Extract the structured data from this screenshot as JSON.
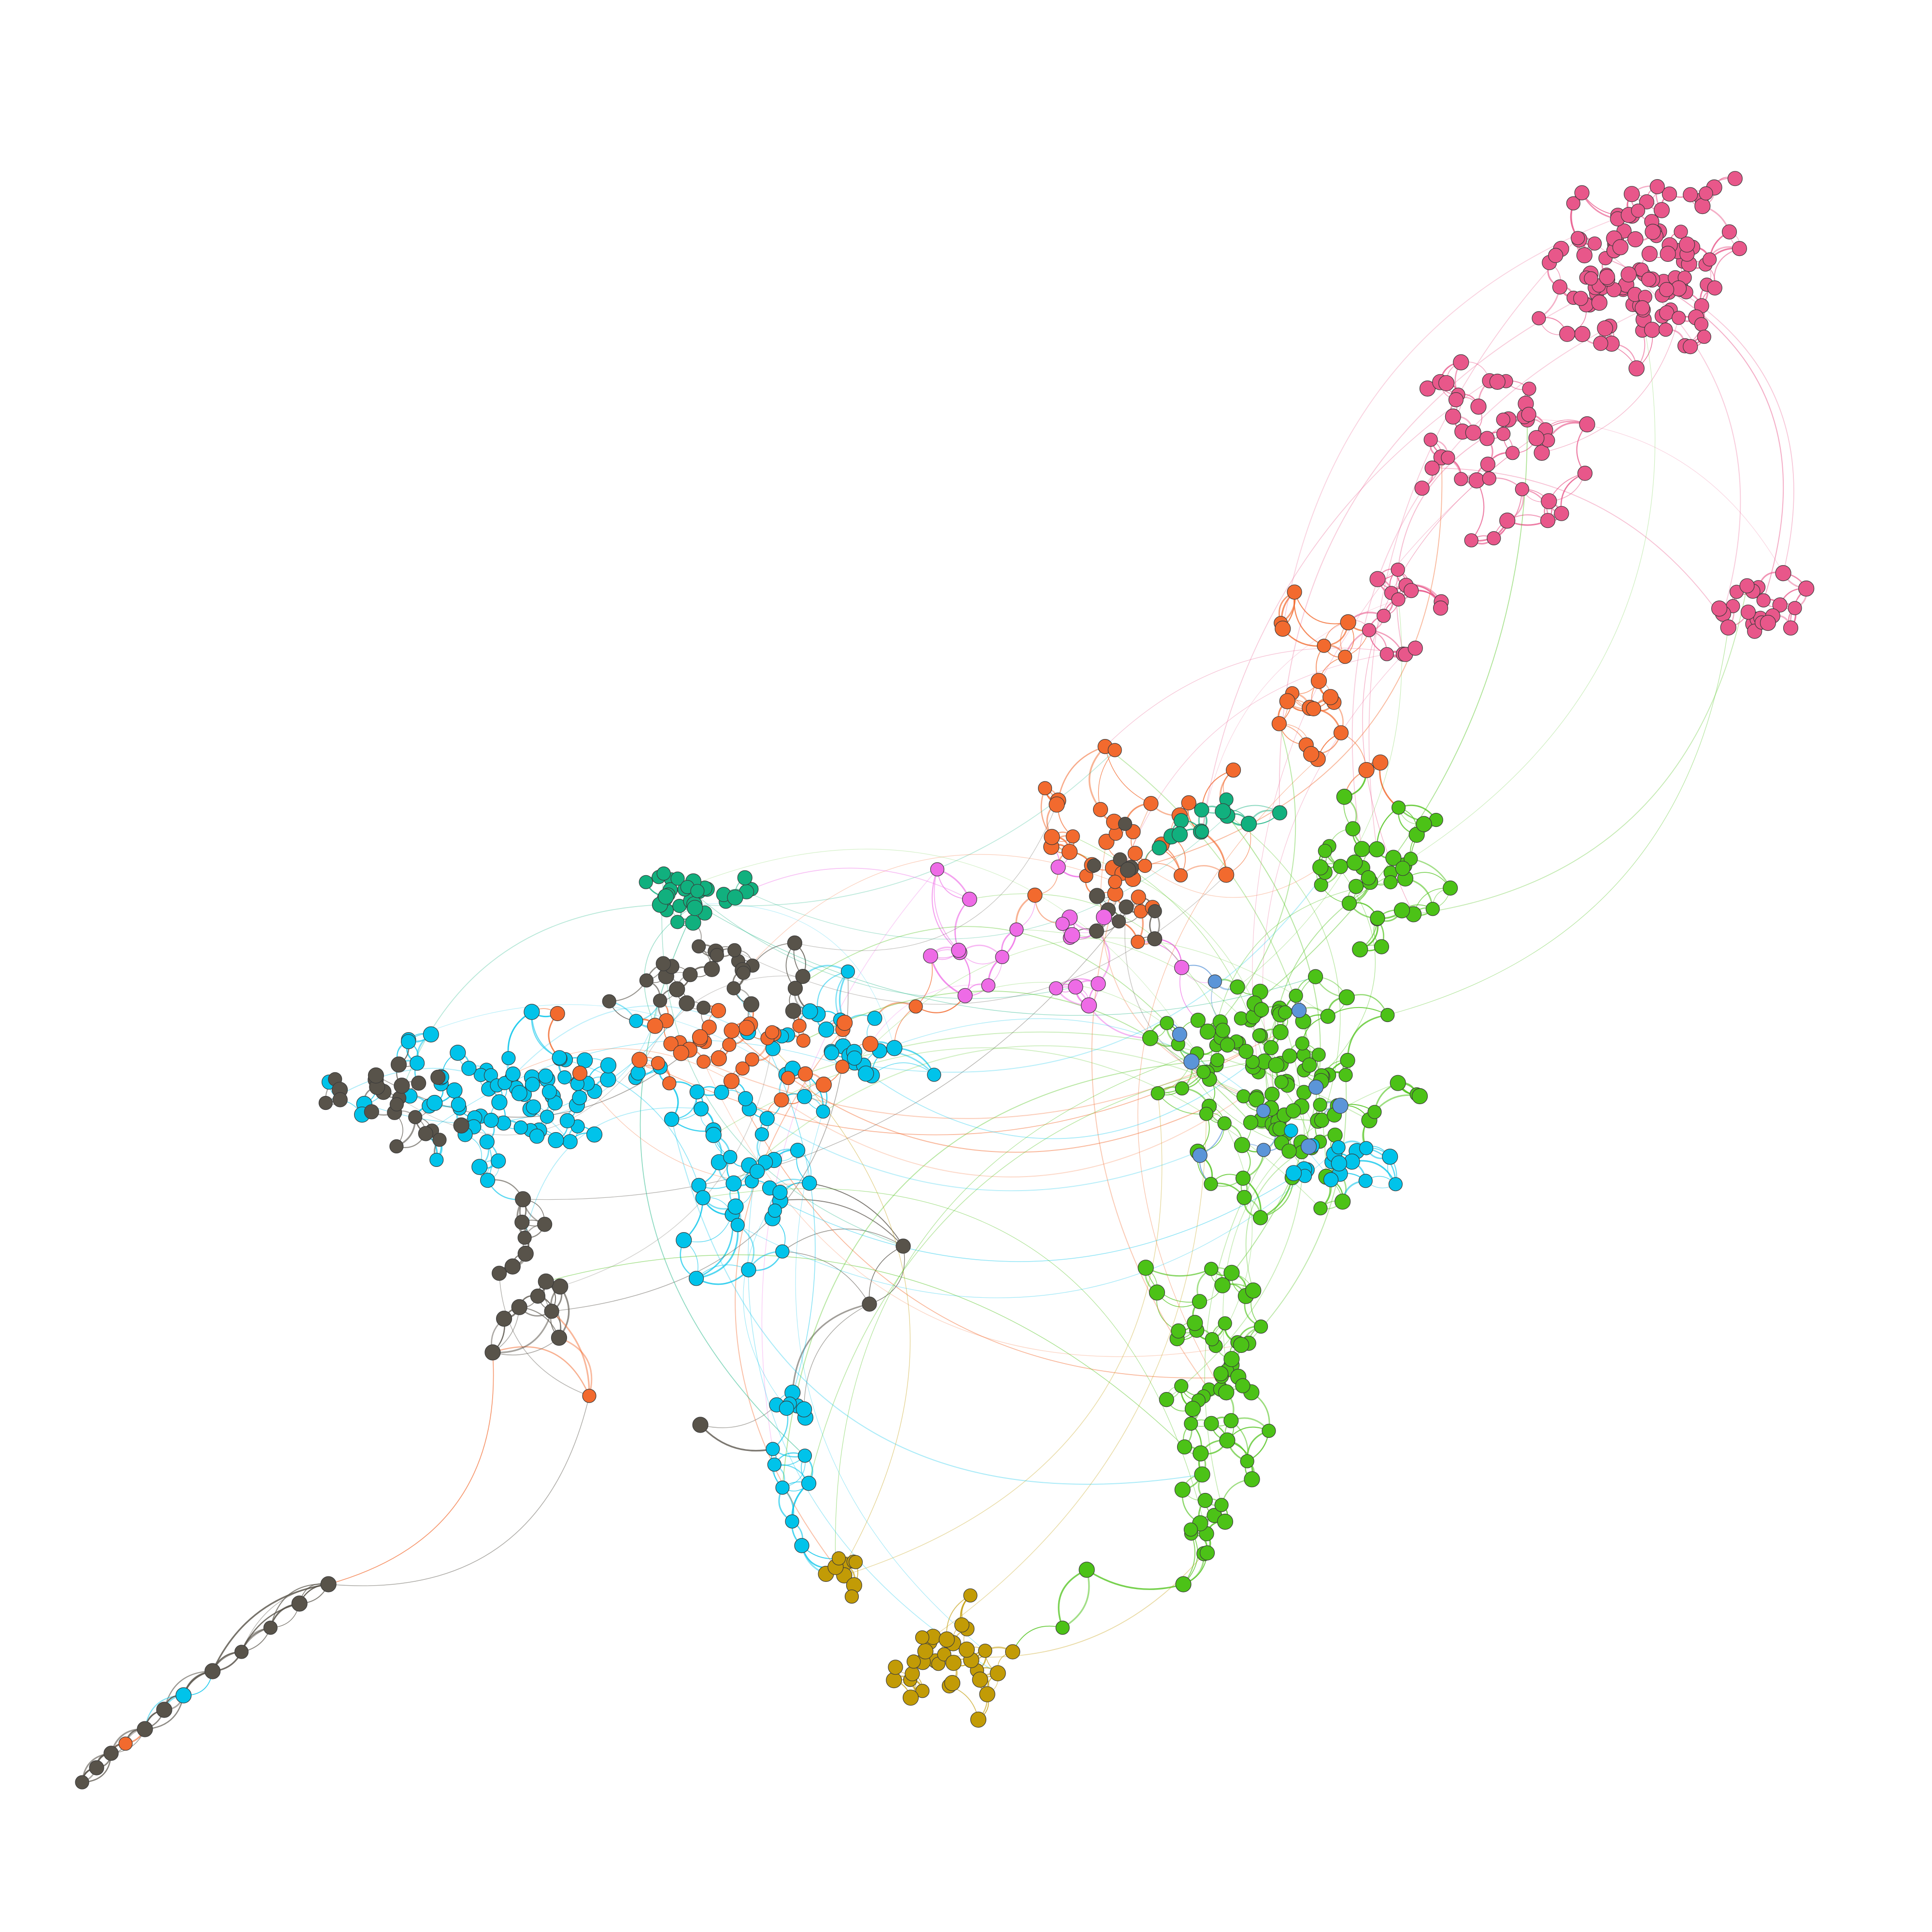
{
  "figure": {
    "type": "network-graph",
    "layout": "force-directed",
    "edge_style": "curved arcs",
    "background": "#ffffff",
    "labels_shown": false
  },
  "communities": [
    {
      "id": "pink",
      "color": "#e8578a"
    },
    {
      "id": "green",
      "color": "#4cc217"
    },
    {
      "id": "cyan",
      "color": "#00c3ea"
    },
    {
      "id": "orange",
      "color": "#f26a2e"
    },
    {
      "id": "dark",
      "color": "#58534a"
    },
    {
      "id": "teal",
      "color": "#11b07e"
    },
    {
      "id": "gold",
      "color": "#c29b06"
    },
    {
      "id": "magenta",
      "color": "#ee6be6"
    },
    {
      "id": "blue",
      "color": "#5b95d8"
    }
  ]
}
